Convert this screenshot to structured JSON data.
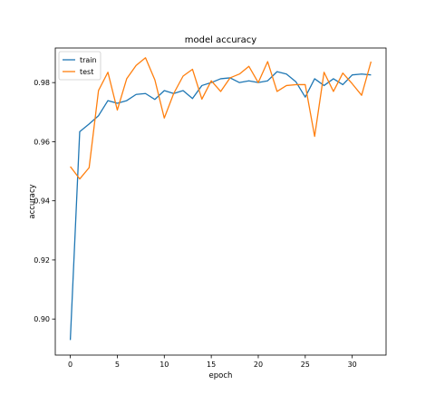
{
  "chart_data": {
    "type": "line",
    "title": "model accuracy",
    "xlabel": "epoch",
    "ylabel": "accuracy",
    "xlim": [
      -1.6,
      33.6
    ],
    "ylim": [
      0.8878,
      0.9917
    ],
    "x_ticks": [
      0,
      5,
      10,
      15,
      20,
      25,
      30
    ],
    "y_ticks": [
      0.9,
      0.92,
      0.94,
      0.96,
      0.98
    ],
    "y_tick_labels": [
      "0.90",
      "0.92",
      "0.94",
      "0.96",
      "0.98"
    ],
    "grid": false,
    "legend_position": "upper-left",
    "x": [
      0,
      1,
      2,
      3,
      4,
      5,
      6,
      7,
      8,
      9,
      10,
      11,
      12,
      13,
      14,
      15,
      16,
      17,
      18,
      19,
      20,
      21,
      22,
      23,
      24,
      25,
      26,
      27,
      28,
      29,
      30,
      31,
      32
    ],
    "series": [
      {
        "name": "train",
        "color": "#1f77b4",
        "values": [
          0.8929,
          0.9634,
          0.966,
          0.9688,
          0.9739,
          0.973,
          0.9739,
          0.976,
          0.9763,
          0.9743,
          0.9773,
          0.9763,
          0.9773,
          0.9746,
          0.979,
          0.98,
          0.9813,
          0.9816,
          0.98,
          0.9806,
          0.98,
          0.9806,
          0.9837,
          0.9829,
          0.9803,
          0.9751,
          0.9813,
          0.979,
          0.9813,
          0.9793,
          0.9826,
          0.9829,
          0.9826
        ]
      },
      {
        "name": "test",
        "color": "#ff7f0e",
        "values": [
          0.9516,
          0.9474,
          0.9512,
          0.9773,
          0.9835,
          0.9707,
          0.9813,
          0.9858,
          0.9884,
          0.9809,
          0.968,
          0.9763,
          0.9822,
          0.9845,
          0.9744,
          0.9806,
          0.977,
          0.9816,
          0.9829,
          0.9855,
          0.98,
          0.9871,
          0.977,
          0.979,
          0.9793,
          0.9793,
          0.9618,
          0.9835,
          0.977,
          0.9832,
          0.9796,
          0.9757,
          0.9871
        ]
      }
    ]
  }
}
